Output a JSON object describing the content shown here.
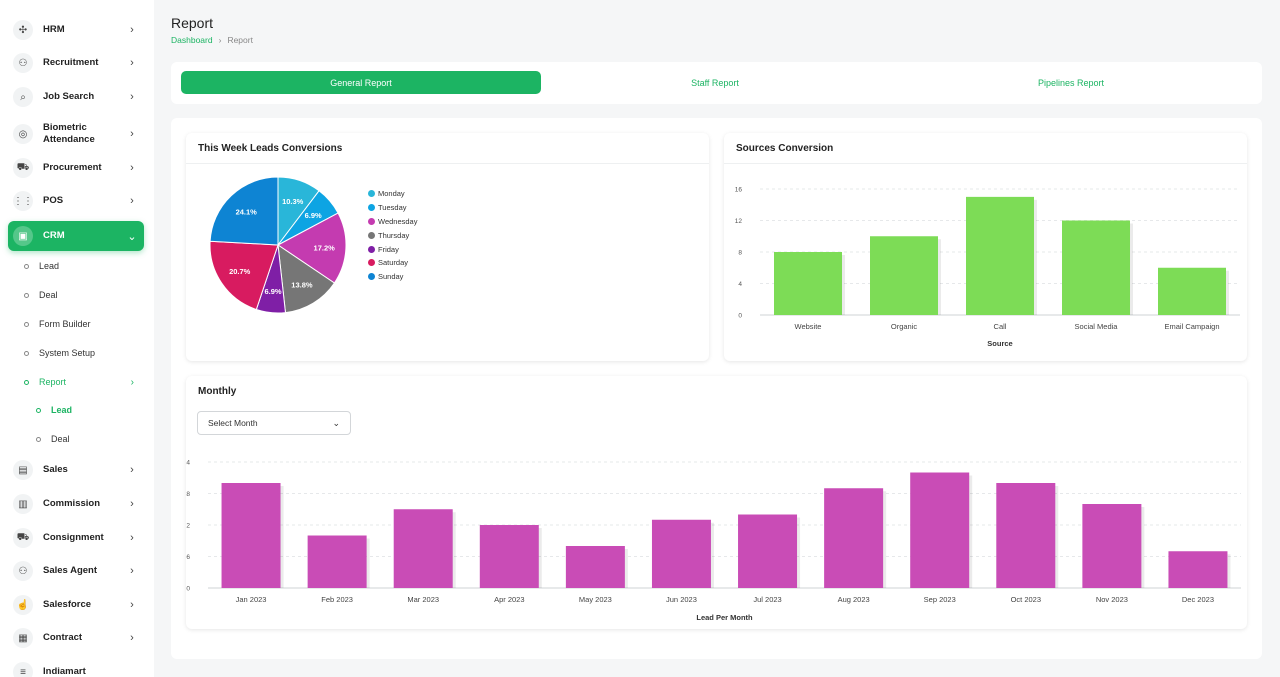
{
  "sidebar": {
    "items": [
      {
        "label": "HRM",
        "icon": "network-icon",
        "glyph": "✣"
      },
      {
        "label": "Recruitment",
        "icon": "user-plus-icon",
        "glyph": "⚇"
      },
      {
        "label": "Job Search",
        "icon": "file-search-icon",
        "glyph": "⌕"
      },
      {
        "label": "Biometric Attendance",
        "icon": "fingerprint-icon",
        "glyph": "◎"
      },
      {
        "label": "Procurement",
        "icon": "cart-icon",
        "glyph": "⛟"
      },
      {
        "label": "POS",
        "icon": "grid-icon",
        "glyph": "⋮⋮"
      },
      {
        "label": "CRM",
        "icon": "crm-icon",
        "glyph": "▣"
      },
      {
        "label": "Sales",
        "icon": "document-icon",
        "glyph": "▤"
      },
      {
        "label": "Commission",
        "icon": "wallet-icon",
        "glyph": "▥"
      },
      {
        "label": "Consignment",
        "icon": "truck-icon",
        "glyph": "⛟"
      },
      {
        "label": "Sales Agent",
        "icon": "user-plus-icon",
        "glyph": "⚇"
      },
      {
        "label": "Salesforce",
        "icon": "thumbs-up-icon",
        "glyph": "☝"
      },
      {
        "label": "Contract",
        "icon": "contract-icon",
        "glyph": "▦"
      },
      {
        "label": "Indiamart",
        "icon": "list-icon",
        "glyph": "≡"
      }
    ],
    "crm_sub": [
      "Lead",
      "Deal",
      "Form Builder",
      "System Setup",
      "Report"
    ],
    "report_sub": [
      "Lead",
      "Deal"
    ]
  },
  "header": {
    "title": "Report",
    "breadcrumb": [
      "Dashboard",
      "Report"
    ]
  },
  "tabs": [
    "General Report",
    "Staff Report",
    "Pipelines Report"
  ],
  "panels": {
    "leads": "This Week Leads Conversions",
    "sources": "Sources Conversion",
    "monthly": "Monthly",
    "month_select": "Select Month"
  },
  "colors": {
    "accent": "#1cb463",
    "bar_green": "#7ddc56",
    "bar_magenta": "#c94cb6"
  },
  "chart_data": [
    {
      "type": "pie",
      "categories": [
        "Monday",
        "Tuesday",
        "Wednesday",
        "Thursday",
        "Friday",
        "Saturday",
        "Sunday"
      ],
      "values": [
        10.3,
        6.9,
        17.2,
        13.8,
        6.9,
        20.7,
        24.1
      ],
      "labels": [
        "10.3%",
        "6.9%",
        "17.2%",
        "13.8%",
        "6.9%",
        "20.7%",
        "24.1%"
      ],
      "colors": [
        "#29b6d9",
        "#0da4e3",
        "#c43bb0",
        "#767676",
        "#7f1fa6",
        "#d81b60",
        "#0e84d3"
      ],
      "legend": "right"
    },
    {
      "type": "bar",
      "categories": [
        "Website",
        "Organic",
        "Call",
        "Social Media",
        "Email Campaign"
      ],
      "values": [
        8,
        10,
        15,
        12,
        6
      ],
      "xlabel": "Source",
      "yticks": [
        0,
        4,
        8,
        12,
        16
      ],
      "ylim": [
        0,
        16
      ],
      "grid": true
    },
    {
      "type": "bar",
      "categories": [
        "Jan 2023",
        "Feb 2023",
        "Mar 2023",
        "Apr 2023",
        "May 2023",
        "Jun 2023",
        "Jul 2023",
        "Aug 2023",
        "Sep 2023",
        "Oct 2023",
        "Nov 2023",
        "Dec 2023"
      ],
      "values": [
        20,
        10,
        15,
        12,
        8,
        13,
        14,
        19,
        22,
        20,
        16,
        7
      ],
      "xlabel": "Lead Per Month",
      "yticks": [
        0,
        6,
        12,
        18,
        24
      ],
      "ylim": [
        0,
        24
      ],
      "grid": true
    }
  ]
}
